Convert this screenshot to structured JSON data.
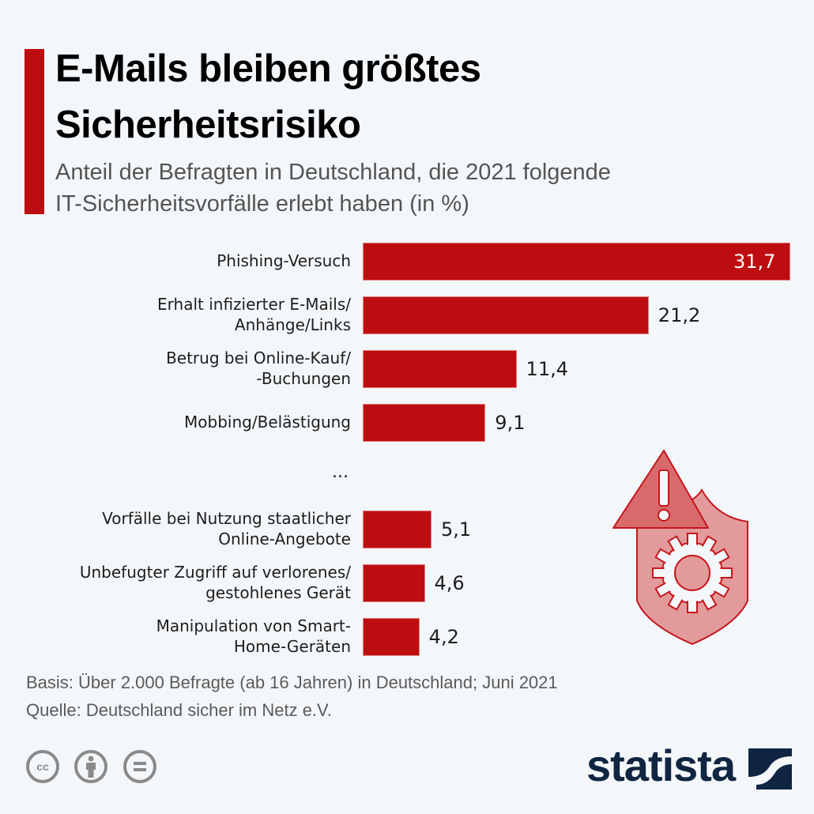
{
  "header": {
    "title_line1": "E-Mails bleiben größtes",
    "title_line2": "Sicherheitsrisiko",
    "subtitle_line1": "Anteil der Befragten in Deutschland, die 2021 folgende",
    "subtitle_line2": "IT-Sicherheitsvorfälle erlebt haben (in %)"
  },
  "colors": {
    "accent": "#be0d10",
    "bar": "#be0d10",
    "background": "#f4f7fa",
    "logo": "#0f2541"
  },
  "chart_data": {
    "type": "bar",
    "orientation": "horizontal",
    "title": "E-Mails bleiben größtes Sicherheitsrisiko",
    "subtitle": "Anteil der Befragten in Deutschland, die 2021 folgende IT-Sicherheitsvorfälle erlebt haben (in %)",
    "xlabel": "",
    "ylabel": "",
    "unit": "%",
    "xlim": [
      0,
      31.7
    ],
    "grid": false,
    "legend": "none",
    "categories": [
      [
        "Phishing-Versuch"
      ],
      [
        "Erhalt infizierter E-Mails/",
        "Anhänge/Links"
      ],
      [
        "Betrug bei Online-Kauf/",
        "-Buchungen"
      ],
      [
        "Mobbing/Belästigung"
      ],
      [
        "Vorfälle bei Nutzung staatlicher",
        "Online-Angebote"
      ],
      [
        "Unbefugter Zugriff auf verlorenes/",
        "gestohlenes Gerät"
      ],
      [
        "Manipulation von Smart-",
        "Home-Geräten"
      ]
    ],
    "values": [
      31.7,
      21.2,
      11.4,
      9.1,
      5.1,
      4.6,
      4.2
    ],
    "value_labels": [
      "31,7",
      "21,2",
      "11,4",
      "9,1",
      "5,1",
      "4,6",
      "4,2"
    ],
    "annotations": [
      {
        "text": "...",
        "after_category_index": 3
      }
    ]
  },
  "footer": {
    "basis": "Basis: Über 2.000 Befragte (ab 16 Jahren) in Deutschland; Juni 2021",
    "source": "Quelle: Deutschland sicher im Netz e.V.",
    "license_icons": [
      "cc-icon",
      "attribution-icon",
      "no-derivatives-icon"
    ],
    "brand": "statista"
  }
}
